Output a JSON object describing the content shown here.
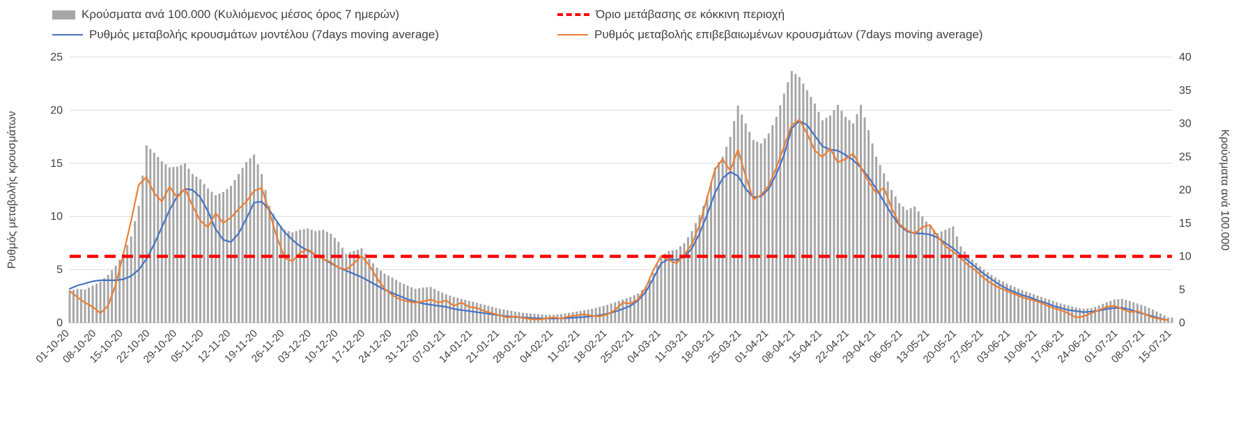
{
  "legend": {
    "items": [
      {
        "key": "cases-bars",
        "label": "Κρούσματα ανά 100.000 (Κυλιόμενος μέσος όρος 7 ημερών)",
        "swatch": "bar",
        "color": "#a6a6a6"
      },
      {
        "key": "red-threshold",
        "label": "Όριο μετάβασης σε κόκκινη περιοχή",
        "swatch": "dashed-line",
        "color": "#ff0000"
      },
      {
        "key": "model-rate",
        "label": "Ρυθμός μεταβολής κρουσμάτων μοντέλου (7days moving average)",
        "swatch": "line",
        "color": "#4472c4"
      },
      {
        "key": "confirmed-rate",
        "label": "Ρυθμός μεταβολής επιβεβαιωμένων κρουσμάτων (7days moving average)",
        "swatch": "line",
        "color": "#ed7d31"
      }
    ]
  },
  "chart_data": {
    "type": "bar+line",
    "title": "",
    "x_start": "01-10-20",
    "x_end": "15-07-21",
    "sample_step_days": 2,
    "x_tick_labels": [
      "01-10-20",
      "08-10-20",
      "15-10-20",
      "22-10-20",
      "29-10-20",
      "05-11-20",
      "12-11-20",
      "19-11-20",
      "26-11-20",
      "03-12-20",
      "10-12-20",
      "17-12-20",
      "24-12-20",
      "31-12-20",
      "07-01-21",
      "14-01-21",
      "21-01-21",
      "28-01-21",
      "04-02-21",
      "11-02-21",
      "18-02-21",
      "25-02-21",
      "04-03-21",
      "11-03-21",
      "18-03-21",
      "25-03-21",
      "01-04-21",
      "08-04-21",
      "15-04-21",
      "22-04-21",
      "29-04-21",
      "06-05-21",
      "13-05-21",
      "20-05-21",
      "27-05-21",
      "03-06-21",
      "10-06-21",
      "17-06-21",
      "24-06-21",
      "01-07-21",
      "08-07-21",
      "15-07-21"
    ],
    "axes": {
      "left": {
        "label": "Ρυθμός μεταβολής κρουσμάτων",
        "min": 0,
        "max": 25,
        "ticks": [
          0,
          5,
          10,
          15,
          20,
          25
        ]
      },
      "right": {
        "label": "Κρούσματα ανά 100.000",
        "min": 0,
        "max": 40,
        "ticks": [
          0,
          5,
          10,
          15,
          20,
          25,
          30,
          35,
          40
        ]
      }
    },
    "grid": "horizontal",
    "legend_position": "top",
    "threshold": {
      "name": "Όριο μετάβασης σε κόκκινη περιοχή",
      "axis": "left",
      "value": 6.25,
      "color": "#ff0000",
      "style": "dashed"
    },
    "bars": {
      "name": "Κρούσματα ανά 100.000 (Κυλιόμενος μέσος όρος 7 ημερών)",
      "axis": "right",
      "color": "#a6a6a6",
      "values": [
        4.8,
        5.1,
        5.0,
        5.6,
        6.2,
        7.2,
        8.6,
        10.4,
        13.0,
        17.6,
        26.7,
        25.6,
        24.3,
        23.4,
        23.5,
        24.0,
        22.4,
        21.6,
        20.2,
        19.2,
        19.7,
        20.6,
        22.4,
        24.2,
        25.3,
        22.4,
        17.6,
        15.2,
        14.0,
        13.6,
        14.0,
        14.2,
        13.8,
        14.0,
        13.4,
        12.2,
        10.4,
        10.8,
        11.2,
        9.6,
        8.3,
        7.4,
        6.8,
        6.1,
        5.6,
        5.1,
        5.3,
        5.4,
        4.8,
        4.3,
        3.9,
        3.6,
        3.3,
        3.0,
        2.7,
        2.4,
        2.1,
        1.9,
        1.7,
        1.5,
        1.4,
        1.3,
        1.2,
        1.2,
        1.3,
        1.5,
        1.7,
        1.9,
        2.1,
        2.4,
        2.7,
        3.1,
        3.5,
        3.9,
        4.4,
        5.5,
        7.5,
        10.0,
        10.8,
        11.0,
        12.0,
        13.8,
        16.2,
        19.0,
        23.4,
        25.0,
        28.0,
        32.7,
        30.0,
        27.5,
        27.0,
        28.5,
        31.0,
        34.5,
        37.9,
        37.0,
        35.0,
        33.0,
        30.5,
        31.2,
        32.8,
        31.0,
        30.0,
        32.8,
        29.0,
        25.0,
        22.5,
        20.0,
        18.0,
        17.0,
        17.5,
        16.0,
        14.5,
        13.5,
        14.0,
        14.5,
        11.5,
        10.0,
        9.0,
        8.0,
        7.2,
        6.5,
        5.9,
        5.4,
        4.9,
        4.5,
        4.1,
        3.7,
        3.3,
        2.9,
        2.6,
        2.3,
        2.1,
        2.2,
        2.6,
        3.1,
        3.5,
        3.6,
        3.3,
        2.9,
        2.5,
        2.0,
        1.4,
        0.8
      ]
    },
    "series": [
      {
        "name": "Ρυθμός μεταβολής κρουσμάτων μοντέλου (7days moving average)",
        "axis": "left",
        "color": "#4472c4",
        "values": [
          3.2,
          3.5,
          3.7,
          3.9,
          4.0,
          4.0,
          4.0,
          4.1,
          4.4,
          5.0,
          6.0,
          7.4,
          9.0,
          10.6,
          11.9,
          12.6,
          12.5,
          11.8,
          10.5,
          8.8,
          7.8,
          7.6,
          8.4,
          9.8,
          11.3,
          11.4,
          10.6,
          9.5,
          8.5,
          7.8,
          7.2,
          6.8,
          6.4,
          6.0,
          5.6,
          5.2,
          4.9,
          4.6,
          4.3,
          3.9,
          3.5,
          3.1,
          2.8,
          2.5,
          2.2,
          2.0,
          1.8,
          1.7,
          1.6,
          1.5,
          1.3,
          1.2,
          1.1,
          1.0,
          0.9,
          0.8,
          0.7,
          0.6,
          0.55,
          0.5,
          0.45,
          0.42,
          0.4,
          0.4,
          0.42,
          0.45,
          0.5,
          0.55,
          0.62,
          0.7,
          0.85,
          1.05,
          1.3,
          1.6,
          2.1,
          2.9,
          4.2,
          5.6,
          6.0,
          5.9,
          6.2,
          7.0,
          8.4,
          10.2,
          12.2,
          13.6,
          14.2,
          13.8,
          12.6,
          11.8,
          11.9,
          12.6,
          14.0,
          15.8,
          18.3,
          19.0,
          18.6,
          17.6,
          16.6,
          16.3,
          16.2,
          15.8,
          15.3,
          14.6,
          13.7,
          12.6,
          11.4,
          10.2,
          9.2,
          8.6,
          8.4,
          8.4,
          8.3,
          8.0,
          7.5,
          7.0,
          6.4,
          5.8,
          5.2,
          4.6,
          4.1,
          3.6,
          3.2,
          2.9,
          2.6,
          2.4,
          2.1,
          1.9,
          1.6,
          1.4,
          1.2,
          1.1,
          1.0,
          1.05,
          1.15,
          1.3,
          1.4,
          1.4,
          1.25,
          1.0,
          0.8,
          0.6,
          0.4,
          0.25
        ]
      },
      {
        "name": "Ρυθμός μεταβολής επιβεβαιωμένων κρουσμάτων (7days moving average)",
        "axis": "left",
        "color": "#ed7d31",
        "values": [
          3.0,
          2.4,
          1.9,
          1.5,
          0.9,
          1.6,
          3.6,
          6.5,
          9.6,
          13.0,
          13.7,
          12.2,
          11.4,
          12.8,
          11.8,
          12.6,
          11.0,
          9.6,
          9.0,
          10.3,
          9.4,
          9.9,
          10.7,
          11.4,
          12.4,
          12.7,
          10.4,
          8.0,
          6.1,
          5.8,
          6.6,
          6.9,
          6.4,
          6.0,
          5.7,
          5.2,
          5.0,
          5.6,
          6.3,
          5.4,
          4.2,
          3.2,
          2.6,
          2.2,
          2.0,
          1.9,
          2.0,
          2.2,
          1.9,
          2.1,
          1.6,
          1.9,
          1.5,
          1.4,
          1.1,
          0.9,
          0.7,
          0.5,
          0.6,
          0.45,
          0.35,
          0.3,
          0.4,
          0.5,
          0.4,
          0.6,
          0.7,
          0.8,
          0.65,
          0.6,
          0.8,
          1.2,
          1.9,
          1.8,
          2.2,
          3.3,
          5.0,
          6.3,
          5.9,
          5.6,
          6.4,
          7.4,
          9.2,
          11.8,
          14.4,
          15.4,
          14.3,
          16.3,
          13.8,
          11.6,
          12.0,
          12.9,
          14.6,
          16.6,
          18.6,
          19.1,
          17.8,
          16.2,
          15.6,
          16.4,
          15.1,
          15.4,
          15.9,
          14.6,
          13.3,
          12.2,
          12.7,
          10.8,
          9.3,
          8.7,
          8.4,
          9.0,
          9.2,
          8.1,
          7.2,
          6.7,
          6.1,
          5.4,
          4.9,
          4.2,
          3.7,
          3.3,
          3.0,
          2.7,
          2.4,
          2.2,
          2.0,
          1.7,
          1.4,
          1.2,
          0.9,
          0.5,
          0.6,
          0.9,
          1.2,
          1.5,
          1.6,
          1.3,
          1.0,
          1.1,
          0.8,
          0.5,
          0.35,
          0.25
        ]
      }
    ]
  }
}
